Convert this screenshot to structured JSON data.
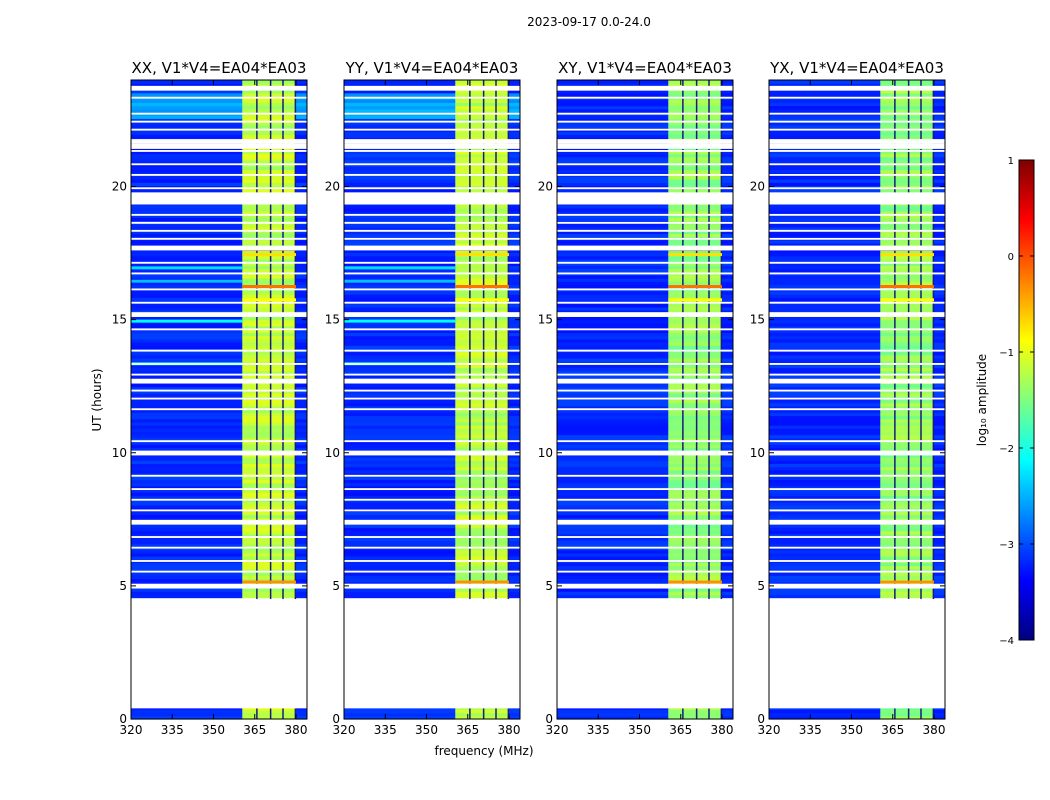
{
  "chart_data": {
    "type": "heatmap",
    "suptitle": "2023-09-17 0.0-24.0",
    "xlabel": "frequency (MHz)",
    "ylabel": "UT (hours)",
    "xlim": [
      320,
      384
    ],
    "ylim": [
      0,
      24
    ],
    "xticks": [
      320,
      335,
      350,
      365,
      380
    ],
    "yticks": [
      0,
      5,
      10,
      15,
      20
    ],
    "panels": [
      {
        "title": "XX, V1*V4=EA04*EA03",
        "pol": "XX"
      },
      {
        "title": "YY, V1*V4=EA04*EA03",
        "pol": "YY"
      },
      {
        "title": "XY, V1*V4=EA04*EA03",
        "pol": "XY"
      },
      {
        "title": "YX, V1*V4=EA04*EA03",
        "pol": "YX"
      }
    ],
    "data_gap_hours": [
      [
        0.4,
        4.5
      ]
    ],
    "active_band_mhz": [
      360.5,
      380
    ],
    "colorbar": {
      "label": "log₁₀ amplitude",
      "range": [
        -4,
        1
      ],
      "ticks": [
        1,
        0,
        -1,
        -2,
        -3,
        -4
      ],
      "tick_labels": [
        "1",
        "0",
        "−1",
        "−2",
        "−3",
        "−4"
      ],
      "colormap": [
        "#00007f",
        "#0000ff",
        "#007fff",
        "#00ffff",
        "#7fff7f",
        "#ffff00",
        "#ff7f00",
        "#ff0000",
        "#7f0000"
      ]
    }
  }
}
